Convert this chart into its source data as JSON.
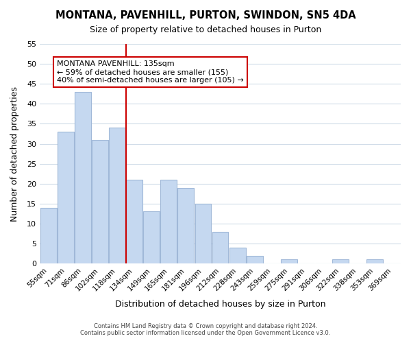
{
  "title": "MONTANA, PAVENHILL, PURTON, SWINDON, SN5 4DA",
  "subtitle": "Size of property relative to detached houses in Purton",
  "xlabel": "Distribution of detached houses by size in Purton",
  "ylabel": "Number of detached properties",
  "bar_labels": [
    "55sqm",
    "71sqm",
    "86sqm",
    "102sqm",
    "118sqm",
    "134sqm",
    "149sqm",
    "165sqm",
    "181sqm",
    "196sqm",
    "212sqm",
    "228sqm",
    "243sqm",
    "259sqm",
    "275sqm",
    "291sqm",
    "306sqm",
    "322sqm",
    "338sqm",
    "353sqm",
    "369sqm"
  ],
  "bar_values": [
    14,
    33,
    43,
    31,
    34,
    21,
    13,
    21,
    19,
    15,
    8,
    4,
    2,
    0,
    1,
    0,
    0,
    1,
    0,
    1,
    0
  ],
  "bar_color": "#c5d8f0",
  "bar_edgecolor": "#a0b8d8",
  "vline_index": 5,
  "vline_color": "#cc0000",
  "ylim": [
    0,
    55
  ],
  "yticks": [
    0,
    5,
    10,
    15,
    20,
    25,
    30,
    35,
    40,
    45,
    50,
    55
  ],
  "annotation_title": "MONTANA PAVENHILL: 135sqm",
  "annotation_line1": "← 59% of detached houses are smaller (155)",
  "annotation_line2": "40% of semi-detached houses are larger (105) →",
  "annotation_box_color": "#ffffff",
  "annotation_box_edgecolor": "#cc0000",
  "footer_line1": "Contains HM Land Registry data © Crown copyright and database right 2024.",
  "footer_line2": "Contains public sector information licensed under the Open Government Licence v3.0.",
  "background_color": "#ffffff",
  "grid_color": "#d0dce8"
}
